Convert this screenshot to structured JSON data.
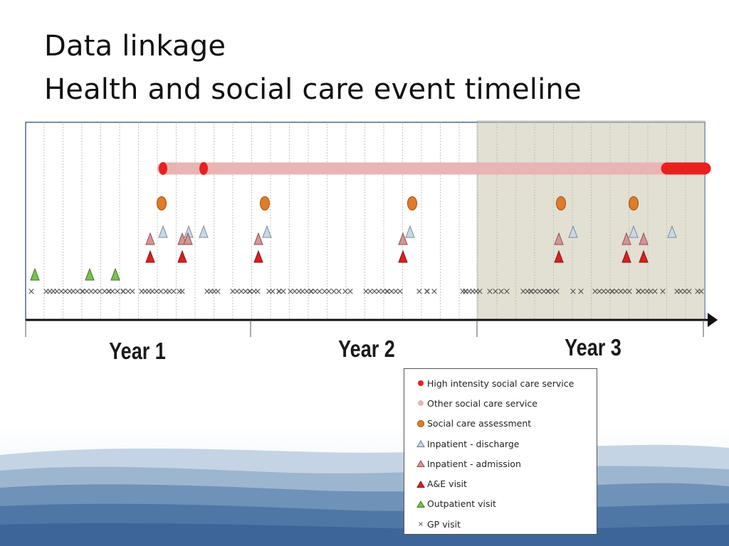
{
  "slide": {
    "title_line1": "Data linkage",
    "title_line2": "Health and social care event timeline"
  },
  "timeline": {
    "year_labels": [
      "Year 1",
      "Year 2",
      "Year 3"
    ],
    "highlight_period": "Year 3",
    "colors": {
      "high_intensity": "#e8211f",
      "other_service": "#e8b4b4",
      "assessment": "#e07b28",
      "inpatient_discharge": "#c8d8e6",
      "inpatient_admission": "#d49595",
      "ae_visit": "#d92020",
      "outpatient_visit": "#7cc050",
      "gp_visit": "#666666",
      "highlight": "#c9c6ad"
    }
  },
  "legend": {
    "items": [
      {
        "label": "High intensity social care service",
        "icon": "red-dot"
      },
      {
        "label": "Other social care service",
        "icon": "pink-dot"
      },
      {
        "label": "Social care assessment",
        "icon": "orange-circle"
      },
      {
        "label": "Inpatient - discharge",
        "icon": "light-blue-triangle"
      },
      {
        "label": "Inpatient - admission",
        "icon": "pink-triangle"
      },
      {
        "label": "A&E visit",
        "icon": "red-triangle"
      },
      {
        "label": "Outpatient visit",
        "icon": "green-triangle"
      },
      {
        "label": "GP visit",
        "icon": "small-cross"
      }
    ]
  }
}
